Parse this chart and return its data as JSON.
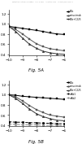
{
  "header": "Patent Application Publication    Sep. 8, 2011    Sheet 14 of 23    US 2011/0214840 A1",
  "fig5A": {
    "title": "Fig. 5A",
    "xlim": [
      -10,
      -6
    ],
    "ylim": [
      0.38,
      1.28
    ],
    "xticks": [
      -10,
      -9,
      -8,
      -7,
      -6
    ],
    "yticks": [
      0.4,
      0.6,
      0.8,
      1.0,
      1.2
    ],
    "series": [
      {
        "label": "E1b",
        "x": [
          -10,
          -9.5,
          -9,
          -8.5,
          -8,
          -7.5,
          -7,
          -6.5,
          -6
        ],
        "y": [
          0.95,
          0.93,
          0.91,
          0.89,
          0.87,
          0.85,
          0.82,
          0.8,
          0.79
        ],
        "color": "#000000",
        "marker": "s",
        "linestyle": "-"
      },
      {
        "label": "cetuximab",
        "x": [
          -10,
          -9.5,
          -9,
          -8.5,
          -8,
          -7.5,
          -7,
          -6.5,
          -6
        ],
        "y": [
          0.95,
          0.89,
          0.8,
          0.7,
          0.61,
          0.55,
          0.51,
          0.49,
          0.47
        ],
        "color": "#555555",
        "marker": "s",
        "linestyle": "-"
      },
      {
        "label": "E1b+C225",
        "x": [
          -10,
          -9.5,
          -9,
          -8.5,
          -8,
          -7.5,
          -7,
          -6.5,
          -6
        ],
        "y": [
          0.95,
          0.85,
          0.72,
          0.6,
          0.52,
          0.46,
          0.43,
          0.41,
          0.4
        ],
        "color": "#333333",
        "marker": "^",
        "linestyle": "-"
      }
    ],
    "legend_labels": [
      "E1b",
      "cetuximab",
      "E1b+C225"
    ]
  },
  "fig5B": {
    "title": "Fig. 5B",
    "xlim": [
      -10,
      -6
    ],
    "ylim": [
      0.38,
      1.28
    ],
    "xticks": [
      -10,
      -9,
      -8,
      -7,
      -6
    ],
    "yticks": [
      0.4,
      0.6,
      0.8,
      1.0,
      1.2
    ],
    "series": [
      {
        "label": "E1b",
        "x": [
          -10,
          -9.5,
          -9,
          -8.5,
          -8,
          -7.5,
          -7,
          -6.5,
          -6
        ],
        "y": [
          1.0,
          0.99,
          0.97,
          0.96,
          0.95,
          0.94,
          0.93,
          0.92,
          0.91
        ],
        "color": "#000000",
        "marker": "s",
        "linestyle": "-"
      },
      {
        "label": "cetuximab",
        "x": [
          -10,
          -9.5,
          -9,
          -8.5,
          -8,
          -7.5,
          -7,
          -6.5,
          -6
        ],
        "y": [
          1.0,
          0.96,
          0.88,
          0.79,
          0.71,
          0.65,
          0.6,
          0.58,
          0.56
        ],
        "color": "#555555",
        "marker": "s",
        "linestyle": "-"
      },
      {
        "label": "E1b+C225",
        "x": [
          -10,
          -9.5,
          -9,
          -8.5,
          -8,
          -7.5,
          -7,
          -6.5,
          -6
        ],
        "y": [
          1.0,
          0.93,
          0.83,
          0.72,
          0.63,
          0.57,
          0.53,
          0.5,
          0.49
        ],
        "color": "#333333",
        "marker": "^",
        "linestyle": "-"
      },
      {
        "label": "mAb1",
        "x": [
          -10,
          -9.5,
          -9,
          -8.5,
          -8,
          -7.5,
          -7,
          -6.5,
          -6
        ],
        "y": [
          0.47,
          0.46,
          0.46,
          0.45,
          0.45,
          0.44,
          0.44,
          0.43,
          0.43
        ],
        "color": "#000000",
        "marker": "o",
        "linestyle": "--"
      },
      {
        "label": "mAb2",
        "x": [
          -10,
          -9.5,
          -9,
          -8.5,
          -8,
          -7.5,
          -7,
          -6.5,
          -6
        ],
        "y": [
          0.42,
          0.42,
          0.41,
          0.41,
          0.41,
          0.4,
          0.4,
          0.4,
          0.39
        ],
        "color": "#888888",
        "marker": "o",
        "linestyle": "--"
      }
    ],
    "legend_labels": [
      "E1b",
      "cetuximab",
      "E1b+C225",
      "mAb1",
      "mAb2"
    ]
  }
}
